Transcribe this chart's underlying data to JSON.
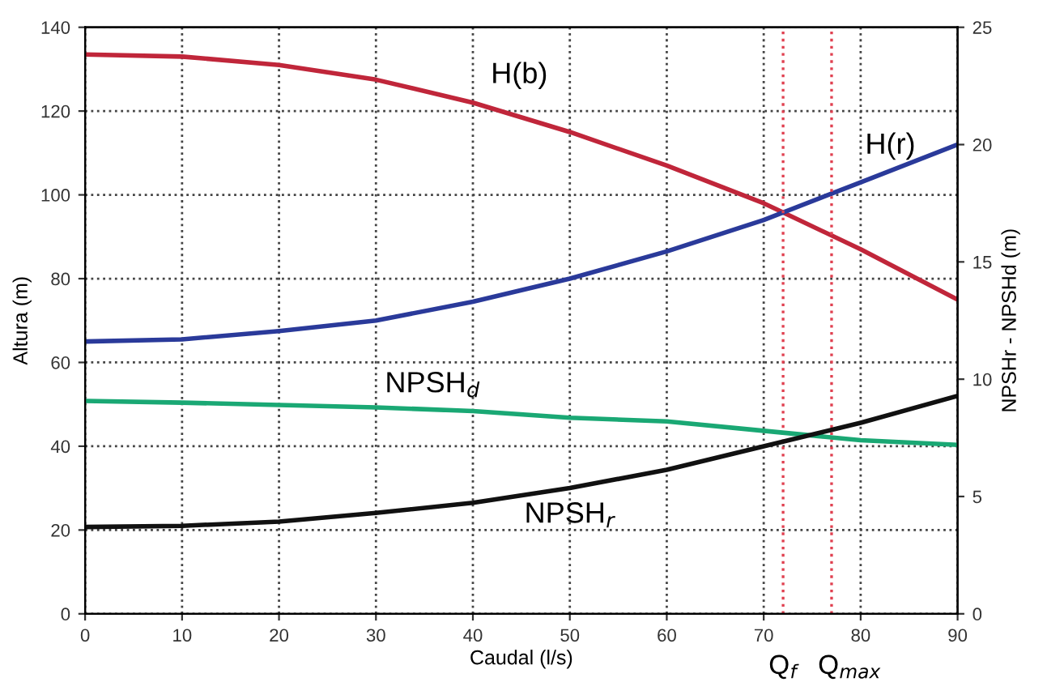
{
  "chart_data": {
    "type": "line",
    "xlabel": "Caudal (l/s)",
    "ylabel": "Altura (m)",
    "y2label": "NPSHr - NPSHd (m)",
    "x": [
      0,
      10,
      20,
      30,
      40,
      50,
      60,
      70,
      80,
      90
    ],
    "series": [
      {
        "name": "H(b)",
        "color": "#c0263a",
        "values": [
          133.5,
          133,
          131,
          127.5,
          122,
          115,
          107,
          98,
          87,
          75
        ]
      },
      {
        "name": "H(r)",
        "color": "#2a3a9a",
        "values": [
          65,
          65.5,
          67.5,
          70,
          74.5,
          80,
          86.5,
          94,
          103,
          112
        ]
      },
      {
        "name": "NPSH$_{d}$",
        "color": "#1aa874",
        "axis": "y2",
        "values": [
          9.07,
          9.0,
          8.9,
          8.8,
          8.64,
          8.36,
          8.2,
          7.8,
          7.4,
          7.2
        ]
      },
      {
        "name": "NPSH$_{r}$",
        "color": "#111111",
        "axis": "y2",
        "values": [
          3.7,
          3.75,
          3.93,
          4.3,
          4.73,
          5.36,
          6.14,
          7.14,
          8.14,
          9.29
        ]
      }
    ],
    "xlim": [
      0,
      90
    ],
    "xticks": [
      0,
      10,
      20,
      30,
      40,
      50,
      60,
      70,
      80,
      90
    ],
    "ylim": [
      0,
      140
    ],
    "yticks": [
      0,
      20,
      40,
      60,
      80,
      100,
      120,
      140
    ],
    "y2lim": [
      0,
      25
    ],
    "y2ticks": [
      0,
      5,
      10,
      15,
      20,
      25
    ],
    "grid": true,
    "line_style": "solid",
    "marker": "none",
    "ref_lines": [
      {
        "axis": "x",
        "value": 72,
        "label": "Q$_{f}$",
        "color": "#e04050",
        "line_style": "dotted"
      },
      {
        "axis": "x",
        "value": 77,
        "label": "Q$_{max}$",
        "color": "#e04050",
        "line_style": "dotted"
      }
    ],
    "legend": false
  }
}
